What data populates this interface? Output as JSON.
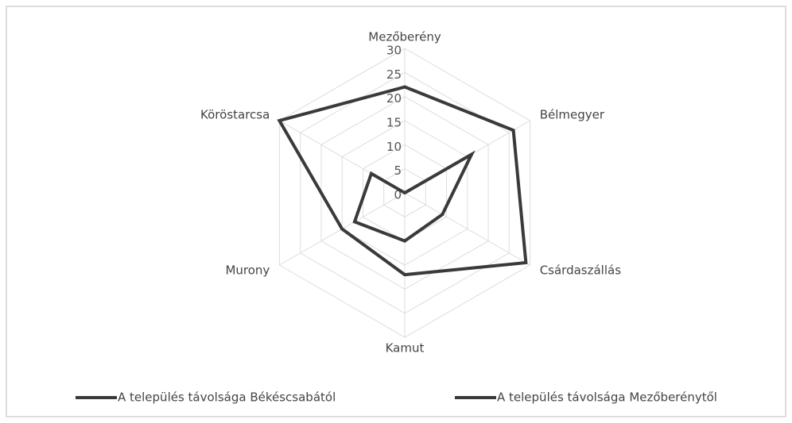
{
  "chart_data": {
    "type": "radar",
    "categories": [
      "Mezőberény",
      "Bélmegyer",
      "Csárdaszállás",
      "Kamut",
      "Murony",
      "Köröstarcsa"
    ],
    "series": [
      {
        "name": "A település távolsága Békéscsabától",
        "color": "#3a3a3a",
        "values": [
          22,
          26,
          29,
          17,
          15,
          30
        ]
      },
      {
        "name": "A település távolsága Mezőberénytől",
        "color": "#3a3a3a",
        "values": [
          0,
          16,
          9,
          10,
          12,
          8
        ]
      }
    ],
    "ylim": [
      0,
      30
    ],
    "yticks": [
      0,
      5,
      10,
      15,
      20,
      25,
      30
    ],
    "grid": true,
    "legend": "bottom"
  }
}
